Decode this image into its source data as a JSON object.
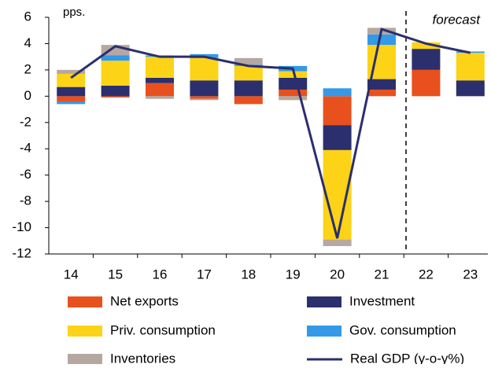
{
  "chart_data": {
    "type": "stacked-bar-line",
    "y_axis_label": "pps.",
    "annotation": "forecast",
    "categories": [
      "14",
      "15",
      "16",
      "17",
      "18",
      "19",
      "20",
      "21",
      "22",
      "23"
    ],
    "series": [
      {
        "name": "Net exports",
        "color": "#e8501d",
        "values": [
          -0.4,
          -0.1,
          1.0,
          -0.2,
          -0.6,
          0.5,
          -2.2,
          0.5,
          2.0,
          0.0
        ]
      },
      {
        "name": "Investment",
        "color": "#2b2f6e",
        "values": [
          0.7,
          0.8,
          0.4,
          1.2,
          1.2,
          0.9,
          -1.9,
          0.8,
          1.6,
          1.2
        ]
      },
      {
        "name": "Priv. consumption",
        "color": "#fcd316",
        "values": [
          1.0,
          1.9,
          1.6,
          1.7,
          1.1,
          0.5,
          -6.8,
          2.6,
          0.5,
          2.1
        ]
      },
      {
        "name": "Gov. consumption",
        "color": "#3399e8",
        "values": [
          -0.2,
          0.4,
          0.1,
          0.3,
          0.1,
          0.4,
          0.6,
          0.8,
          0.0,
          0.1
        ]
      },
      {
        "name": "Inventories",
        "color": "#b5a8a0",
        "values": [
          0.3,
          0.8,
          -0.2,
          -0.1,
          0.5,
          -0.3,
          -0.5,
          0.5,
          0.0,
          0.0
        ]
      }
    ],
    "line": {
      "name": "Real GDP (y-o-y%)",
      "color": "#2b2f6e",
      "values": [
        1.4,
        3.8,
        3.0,
        3.0,
        2.3,
        2.1,
        -10.8,
        5.1,
        4.0,
        3.3
      ]
    },
    "ylim": [
      -12,
      6
    ],
    "yticks": [
      -12,
      -10,
      -8,
      -6,
      -4,
      -2,
      0,
      2,
      4,
      6
    ],
    "grid": false
  }
}
